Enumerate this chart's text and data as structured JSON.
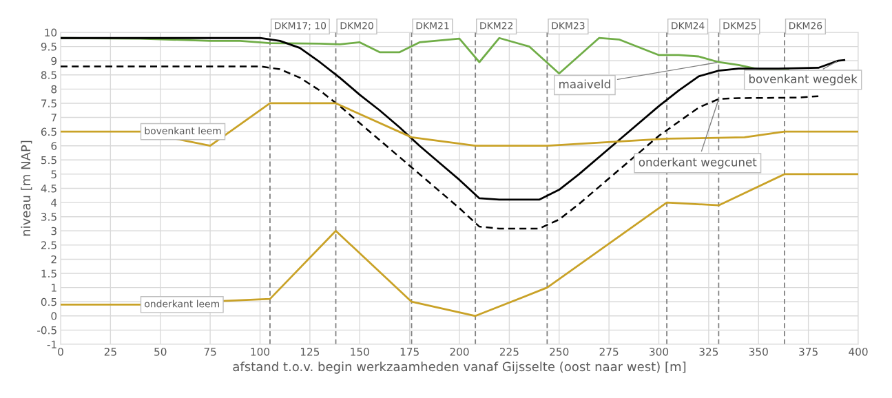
{
  "chart_data": {
    "type": "line",
    "xlabel": "afstand t.o.v. begin werkzaamheden vanaf Gijsselte (oost naar west) [m]",
    "ylabel": "niveau [m NAP]",
    "xlim": [
      0,
      400
    ],
    "xticks": [
      0,
      25,
      50,
      75,
      100,
      125,
      150,
      175,
      200,
      225,
      250,
      275,
      300,
      325,
      350,
      375,
      400
    ],
    "ylim": [
      -1,
      10
    ],
    "yticks": [
      -1,
      -0.5,
      0,
      0.5,
      1,
      1.5,
      2,
      2.5,
      3,
      3.5,
      4,
      4.5,
      5,
      5.5,
      6,
      6.5,
      7,
      7.5,
      8,
      8.5,
      9,
      9.5,
      10
    ],
    "grid": true,
    "marker": "none",
    "series": [
      {
        "color": "#70ad47",
        "x": [
          0,
          40,
          75,
          90,
          105,
          130,
          140,
          150,
          160,
          170,
          180,
          200,
          210,
          220,
          235,
          250,
          270,
          280,
          300,
          310,
          320,
          330,
          340,
          350,
          365
        ],
        "values": [
          9.8,
          9.78,
          9.7,
          9.7,
          9.62,
          9.6,
          9.58,
          9.65,
          9.3,
          9.3,
          9.65,
          9.78,
          8.95,
          9.8,
          9.5,
          8.55,
          9.8,
          9.75,
          9.2,
          9.2,
          9.15,
          8.95,
          8.85,
          8.7,
          8.7
        ]
      },
      {
        "color": "#000000",
        "x": [
          0,
          100,
          110,
          120,
          130,
          140,
          150,
          160,
          170,
          180,
          190,
          200,
          210,
          220,
          240,
          250,
          260,
          280,
          300,
          310,
          320,
          330,
          340,
          360,
          380,
          390,
          393
        ],
        "values": [
          9.8,
          9.8,
          9.7,
          9.45,
          8.95,
          8.4,
          7.8,
          7.25,
          6.65,
          6.0,
          5.4,
          4.8,
          4.15,
          4.1,
          4.1,
          4.45,
          5.0,
          6.2,
          7.4,
          7.95,
          8.45,
          8.65,
          8.72,
          8.72,
          8.75,
          9.0,
          9.02
        ]
      },
      {
        "color": "#000000",
        "line_style": "dashed",
        "x": [
          0,
          100,
          110,
          120,
          130,
          140,
          150,
          160,
          170,
          180,
          190,
          200,
          210,
          220,
          240,
          250,
          260,
          280,
          300,
          320,
          330,
          340,
          370,
          380
        ],
        "values": [
          8.8,
          8.8,
          8.7,
          8.4,
          7.95,
          7.4,
          6.8,
          6.2,
          5.6,
          5.0,
          4.4,
          3.8,
          3.15,
          3.08,
          3.08,
          3.4,
          3.95,
          5.15,
          6.35,
          7.35,
          7.65,
          7.68,
          7.7,
          7.75
        ]
      },
      {
        "color": "#c9a227",
        "x": [
          0,
          40,
          75,
          105,
          138,
          176,
          208,
          244,
          304,
          343,
          363,
          400
        ],
        "values": [
          6.5,
          6.5,
          6.0,
          7.5,
          7.5,
          6.3,
          6.0,
          6.0,
          6.25,
          6.3,
          6.5,
          6.5
        ]
      },
      {
        "color": "#c9a227",
        "x": [
          0,
          40,
          105,
          138,
          176,
          208,
          244,
          304,
          330,
          363,
          400
        ],
        "values": [
          0.4,
          0.4,
          0.6,
          3.0,
          0.5,
          0.0,
          1.0,
          4.0,
          3.9,
          5.0,
          5.0
        ]
      }
    ],
    "ref_lines": [
      {
        "axis": "x",
        "value": 105,
        "label": "DKM17; 10",
        "color": "#808080",
        "line_style": "dashed"
      },
      {
        "axis": "x",
        "value": 138,
        "label": "DKM20",
        "color": "#808080",
        "line_style": "dashed"
      },
      {
        "axis": "x",
        "value": 176,
        "label": "DKM21",
        "color": "#808080",
        "line_style": "dashed"
      },
      {
        "axis": "x",
        "value": 208,
        "label": "DKM22",
        "color": "#808080",
        "line_style": "dashed"
      },
      {
        "axis": "x",
        "value": 244,
        "label": "DKM23",
        "color": "#808080",
        "line_style": "dashed"
      },
      {
        "axis": "x",
        "value": 304,
        "label": "DKM24",
        "color": "#808080",
        "line_style": "dashed"
      },
      {
        "axis": "x",
        "value": 330,
        "label": "DKM25",
        "color": "#808080",
        "line_style": "dashed"
      },
      {
        "axis": "x",
        "value": 363,
        "label": "DKM26",
        "color": "#808080",
        "line_style": "dashed"
      }
    ],
    "annotations": [
      {
        "text": "maaiveld",
        "x": 330,
        "y": 8.95
      },
      {
        "text": "bovenkant wegdek",
        "x": 390,
        "y": 9.0
      },
      {
        "text": "onderkant wegcunet",
        "x": 330,
        "y": 7.65
      },
      {
        "text": "bovenkant leem",
        "x": 40,
        "y": 6.5
      },
      {
        "text": "onderkant leem",
        "x": 40,
        "y": 0.4
      }
    ]
  }
}
